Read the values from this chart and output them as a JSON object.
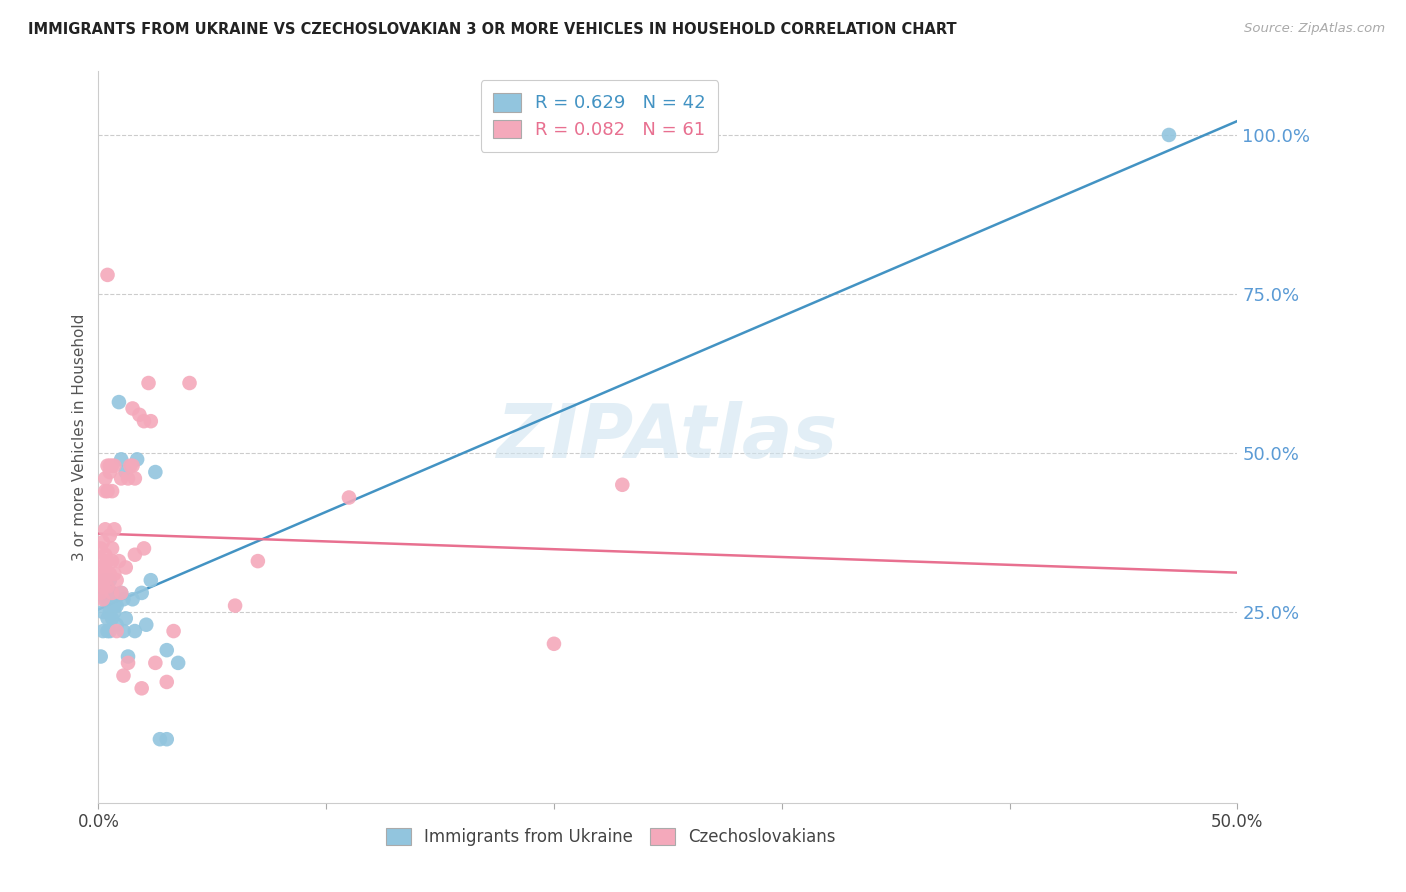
{
  "title": "IMMIGRANTS FROM UKRAINE VS CZECHOSLOVAKIAN 3 OR MORE VEHICLES IN HOUSEHOLD CORRELATION CHART",
  "source": "Source: ZipAtlas.com",
  "ylabel": "3 or more Vehicles in Household",
  "ytick_labels": [
    "100.0%",
    "75.0%",
    "50.0%",
    "25.0%"
  ],
  "ytick_values": [
    1.0,
    0.75,
    0.5,
    0.25
  ],
  "xlim": [
    0.0,
    0.5
  ],
  "ylim": [
    -0.05,
    1.1
  ],
  "legend_blue_R": "0.629",
  "legend_blue_N": "42",
  "legend_pink_R": "0.082",
  "legend_pink_N": "61",
  "watermark": "ZIPAtlas",
  "blue_color": "#92c5de",
  "pink_color": "#f4a9bb",
  "blue_line_color": "#4393c3",
  "pink_line_color": "#e87090",
  "ukraine_points": [
    [
      0.001,
      0.18
    ],
    [
      0.002,
      0.22
    ],
    [
      0.002,
      0.25
    ],
    [
      0.003,
      0.28
    ],
    [
      0.003,
      0.27
    ],
    [
      0.003,
      0.3
    ],
    [
      0.004,
      0.24
    ],
    [
      0.004,
      0.27
    ],
    [
      0.004,
      0.29
    ],
    [
      0.004,
      0.22
    ],
    [
      0.005,
      0.25
    ],
    [
      0.005,
      0.28
    ],
    [
      0.005,
      0.3
    ],
    [
      0.005,
      0.22
    ],
    [
      0.006,
      0.24
    ],
    [
      0.006,
      0.27
    ],
    [
      0.006,
      0.28
    ],
    [
      0.007,
      0.25
    ],
    [
      0.007,
      0.27
    ],
    [
      0.007,
      0.26
    ],
    [
      0.008,
      0.26
    ],
    [
      0.008,
      0.23
    ],
    [
      0.009,
      0.58
    ],
    [
      0.01,
      0.49
    ],
    [
      0.01,
      0.28
    ],
    [
      0.011,
      0.27
    ],
    [
      0.011,
      0.22
    ],
    [
      0.012,
      0.24
    ],
    [
      0.012,
      0.47
    ],
    [
      0.013,
      0.18
    ],
    [
      0.015,
      0.27
    ],
    [
      0.016,
      0.22
    ],
    [
      0.017,
      0.49
    ],
    [
      0.019,
      0.28
    ],
    [
      0.021,
      0.23
    ],
    [
      0.023,
      0.3
    ],
    [
      0.025,
      0.47
    ],
    [
      0.027,
      0.05
    ],
    [
      0.03,
      0.05
    ],
    [
      0.03,
      0.19
    ],
    [
      0.035,
      0.17
    ],
    [
      0.47,
      1.0
    ]
  ],
  "czech_points": [
    [
      0.001,
      0.3
    ],
    [
      0.001,
      0.32
    ],
    [
      0.001,
      0.35
    ],
    [
      0.001,
      0.28
    ],
    [
      0.002,
      0.29
    ],
    [
      0.002,
      0.33
    ],
    [
      0.002,
      0.36
    ],
    [
      0.002,
      0.31
    ],
    [
      0.002,
      0.27
    ],
    [
      0.003,
      0.3
    ],
    [
      0.003,
      0.31
    ],
    [
      0.003,
      0.34
    ],
    [
      0.003,
      0.38
    ],
    [
      0.003,
      0.44
    ],
    [
      0.003,
      0.46
    ],
    [
      0.004,
      0.29
    ],
    [
      0.004,
      0.33
    ],
    [
      0.004,
      0.44
    ],
    [
      0.004,
      0.48
    ],
    [
      0.004,
      0.78
    ],
    [
      0.005,
      0.31
    ],
    [
      0.005,
      0.37
    ],
    [
      0.005,
      0.47
    ],
    [
      0.005,
      0.48
    ],
    [
      0.006,
      0.28
    ],
    [
      0.006,
      0.33
    ],
    [
      0.006,
      0.35
    ],
    [
      0.006,
      0.44
    ],
    [
      0.006,
      0.48
    ],
    [
      0.007,
      0.31
    ],
    [
      0.007,
      0.38
    ],
    [
      0.007,
      0.48
    ],
    [
      0.008,
      0.3
    ],
    [
      0.008,
      0.22
    ],
    [
      0.009,
      0.33
    ],
    [
      0.01,
      0.28
    ],
    [
      0.01,
      0.46
    ],
    [
      0.011,
      0.15
    ],
    [
      0.012,
      0.32
    ],
    [
      0.013,
      0.17
    ],
    [
      0.013,
      0.46
    ],
    [
      0.014,
      0.48
    ],
    [
      0.015,
      0.48
    ],
    [
      0.015,
      0.57
    ],
    [
      0.016,
      0.34
    ],
    [
      0.016,
      0.46
    ],
    [
      0.018,
      0.56
    ],
    [
      0.019,
      0.13
    ],
    [
      0.02,
      0.35
    ],
    [
      0.02,
      0.55
    ],
    [
      0.022,
      0.61
    ],
    [
      0.023,
      0.55
    ],
    [
      0.025,
      0.17
    ],
    [
      0.03,
      0.14
    ],
    [
      0.033,
      0.22
    ],
    [
      0.04,
      0.61
    ],
    [
      0.06,
      0.26
    ],
    [
      0.07,
      0.33
    ],
    [
      0.11,
      0.43
    ],
    [
      0.2,
      0.2
    ],
    [
      0.23,
      0.45
    ]
  ],
  "figsize": [
    14.06,
    8.92
  ],
  "dpi": 100
}
